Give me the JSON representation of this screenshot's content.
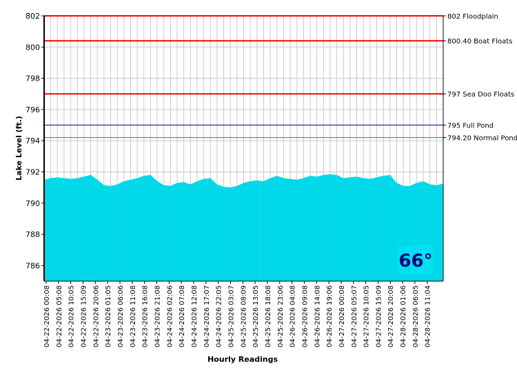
{
  "chart_data": {
    "type": "area",
    "xlabel": "Hourly Readings",
    "ylabel": "Lake Level (ft.)",
    "ylim": [
      785,
      802
    ],
    "yticks": [
      786,
      788,
      790,
      792,
      794,
      796,
      798,
      800,
      802
    ],
    "x_tick_labels": [
      "04-22-2026 00:08",
      "04-22-2026 05:08",
      "04-22-2026 10:05",
      "04-22-2026 15:09",
      "04-22-2026 20:06",
      "04-23-2026 01:05",
      "04-23-2026 06:06",
      "04-23-2026 11:08",
      "04-23-2026 16:08",
      "04-23-2026 21:08",
      "04-24-2026 02:06",
      "04-24-2026 07:08",
      "04-24-2026 12:08",
      "04-24-2026 17:07",
      "04-24-2026 22:05",
      "04-25-2026 03:07",
      "04-25-2026 08:09",
      "04-25-2026 13:05",
      "04-25-2026 18:08",
      "04-25-2026 23:06",
      "04-26-2026 04:08",
      "04-26-2026 09:08",
      "04-26-2026 14:08",
      "04-26-2026 19:06",
      "04-27-2026 00:08",
      "04-27-2026 05:07",
      "04-27-2026 10:05",
      "04-27-2026 15:09",
      "04-27-2026 20:08",
      "04-28-2026 01:06",
      "04-28-2026 06:05",
      "04-28-2026 11:04"
    ],
    "series": [
      {
        "values": [
          791.5,
          791.6,
          791.65,
          791.6,
          791.55,
          791.6,
          791.7,
          791.8,
          791.5,
          791.15,
          791.1,
          791.2,
          791.4,
          791.5,
          791.6,
          791.75,
          791.8,
          791.4,
          791.15,
          791.1,
          791.3,
          791.35,
          791.2,
          791.4,
          791.55,
          791.6,
          791.2,
          791.05,
          791.0,
          791.1,
          791.3,
          791.4,
          791.45,
          791.4,
          791.6,
          791.75,
          791.6,
          791.55,
          791.5,
          791.6,
          791.75,
          791.7,
          791.8,
          791.85,
          791.8,
          791.6,
          791.65,
          791.7,
          791.6,
          791.55,
          791.65,
          791.75,
          791.8,
          791.3,
          791.1,
          791.1,
          791.3,
          791.4,
          791.2,
          791.15,
          791.25
        ],
        "color": "#00e0f0"
      }
    ],
    "reference_lines": [
      {
        "value": 802,
        "label": "802 Floodplain",
        "color": "#ff0000"
      },
      {
        "value": 800.4,
        "label": "800.40 Boat Floats",
        "color": "#ff0000"
      },
      {
        "value": 797,
        "label": "797 Sea Doo Floats",
        "color": "#ff0000"
      },
      {
        "value": 795,
        "label": "795 Full Pond",
        "color": "#000080"
      },
      {
        "value": 794.2,
        "label": "794.20 Normal Pond",
        "color": "#228b22"
      }
    ],
    "grid": true,
    "temperature": "66°",
    "temperature_color": "#000080",
    "temperature_bg": "#00e0f0"
  }
}
